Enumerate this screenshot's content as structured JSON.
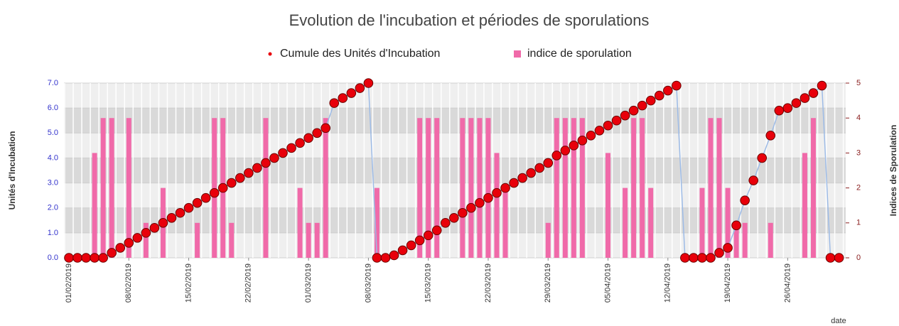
{
  "chart_data": {
    "type": "bar-line",
    "title": "Evolution de l'incubation et périodes de sporulations",
    "xlabel": "date",
    "ylabel": "Unités d'Incubation",
    "y2label": "Indices de Sporulation",
    "categories": [
      "01/02/2019",
      null,
      null,
      null,
      null,
      null,
      null,
      "08/02/2019",
      null,
      null,
      null,
      null,
      null,
      null,
      "15/02/2019",
      null,
      null,
      null,
      null,
      null,
      null,
      "22/02/2019",
      null,
      null,
      null,
      null,
      null,
      null,
      "01/03/2019",
      null,
      null,
      null,
      null,
      null,
      null,
      "08/03/2019",
      null,
      null,
      null,
      null,
      null,
      null,
      "15/03/2019",
      null,
      null,
      null,
      null,
      null,
      null,
      "22/03/2019",
      null,
      null,
      null,
      null,
      null,
      null,
      "29/03/2019",
      null,
      null,
      null,
      null,
      null,
      null,
      "05/04/2019",
      null,
      null,
      null,
      null,
      null,
      null,
      "12/04/2019",
      null,
      null,
      null,
      null,
      null,
      null,
      "19/04/2019",
      null,
      null,
      null,
      null,
      null,
      null,
      "26/04/2019",
      null,
      null,
      null,
      null,
      null,
      null
    ],
    "series": [
      {
        "name": "Cumule des Unités d'Incubation",
        "type": "line",
        "color": "#e8000b",
        "line_color": "#9dbbe6",
        "values": [
          0,
          0,
          0,
          0,
          0,
          0.2,
          0.4,
          0.6,
          0.8,
          1.0,
          1.2,
          1.4,
          1.6,
          1.8,
          2.0,
          2.2,
          2.4,
          2.6,
          2.8,
          3.0,
          3.2,
          3.4,
          3.6,
          3.8,
          4.0,
          4.2,
          4.4,
          4.6,
          4.8,
          5.0,
          5.2,
          6.2,
          6.4,
          6.6,
          6.8,
          7.0,
          0,
          0,
          0.1,
          0.3,
          0.5,
          0.7,
          0.9,
          1.1,
          1.4,
          1.6,
          1.8,
          2.0,
          2.2,
          2.4,
          2.6,
          2.8,
          3.0,
          3.2,
          3.4,
          3.6,
          3.8,
          4.1,
          4.3,
          4.5,
          4.7,
          4.9,
          5.1,
          5.3,
          5.5,
          5.7,
          5.9,
          6.1,
          6.3,
          6.5,
          6.7,
          6.9,
          0,
          0,
          0,
          0,
          0.2,
          0.4,
          1.3,
          2.3,
          3.1,
          4.0,
          4.9,
          5.9,
          6.0,
          6.2,
          6.4,
          6.6,
          6.9,
          0,
          0
        ]
      },
      {
        "name": "indice de sporulation",
        "type": "bar",
        "axis": "y2",
        "color": "#f06aa9",
        "values": [
          0,
          0,
          0,
          3,
          4,
          4,
          0,
          4,
          0,
          1,
          0,
          2,
          0,
          0,
          0,
          1,
          0,
          4,
          4,
          1,
          0,
          0,
          0,
          4,
          0,
          0,
          0,
          2,
          1,
          1,
          4,
          0,
          0,
          0,
          0,
          0,
          2,
          0,
          0,
          0,
          0,
          4,
          4,
          4,
          0,
          0,
          4,
          4,
          4,
          4,
          3,
          2,
          0,
          0,
          0,
          0,
          1,
          4,
          4,
          4,
          4,
          0,
          0,
          3,
          0,
          2,
          4,
          4,
          2,
          0,
          0,
          0,
          0,
          0,
          2,
          4,
          4,
          2,
          1,
          1,
          0,
          0,
          1,
          0,
          0,
          0,
          3,
          4,
          0,
          0,
          0
        ]
      }
    ],
    "ylim": [
      0,
      7
    ],
    "yticks": [
      {
        "value": 0,
        "label": "0.0"
      },
      {
        "value": 1,
        "label": "1.0"
      },
      {
        "value": 2,
        "label": "2.0"
      },
      {
        "value": 3,
        "label": "3.0"
      },
      {
        "value": 4,
        "label": "4.0"
      },
      {
        "value": 5,
        "label": "5.0"
      },
      {
        "value": 6,
        "label": "6.0"
      },
      {
        "value": 7,
        "label": "7.0"
      }
    ],
    "y2lim": [
      0,
      5
    ],
    "y2ticks": [
      0,
      1,
      2,
      3,
      4,
      5
    ],
    "legend": "top"
  }
}
